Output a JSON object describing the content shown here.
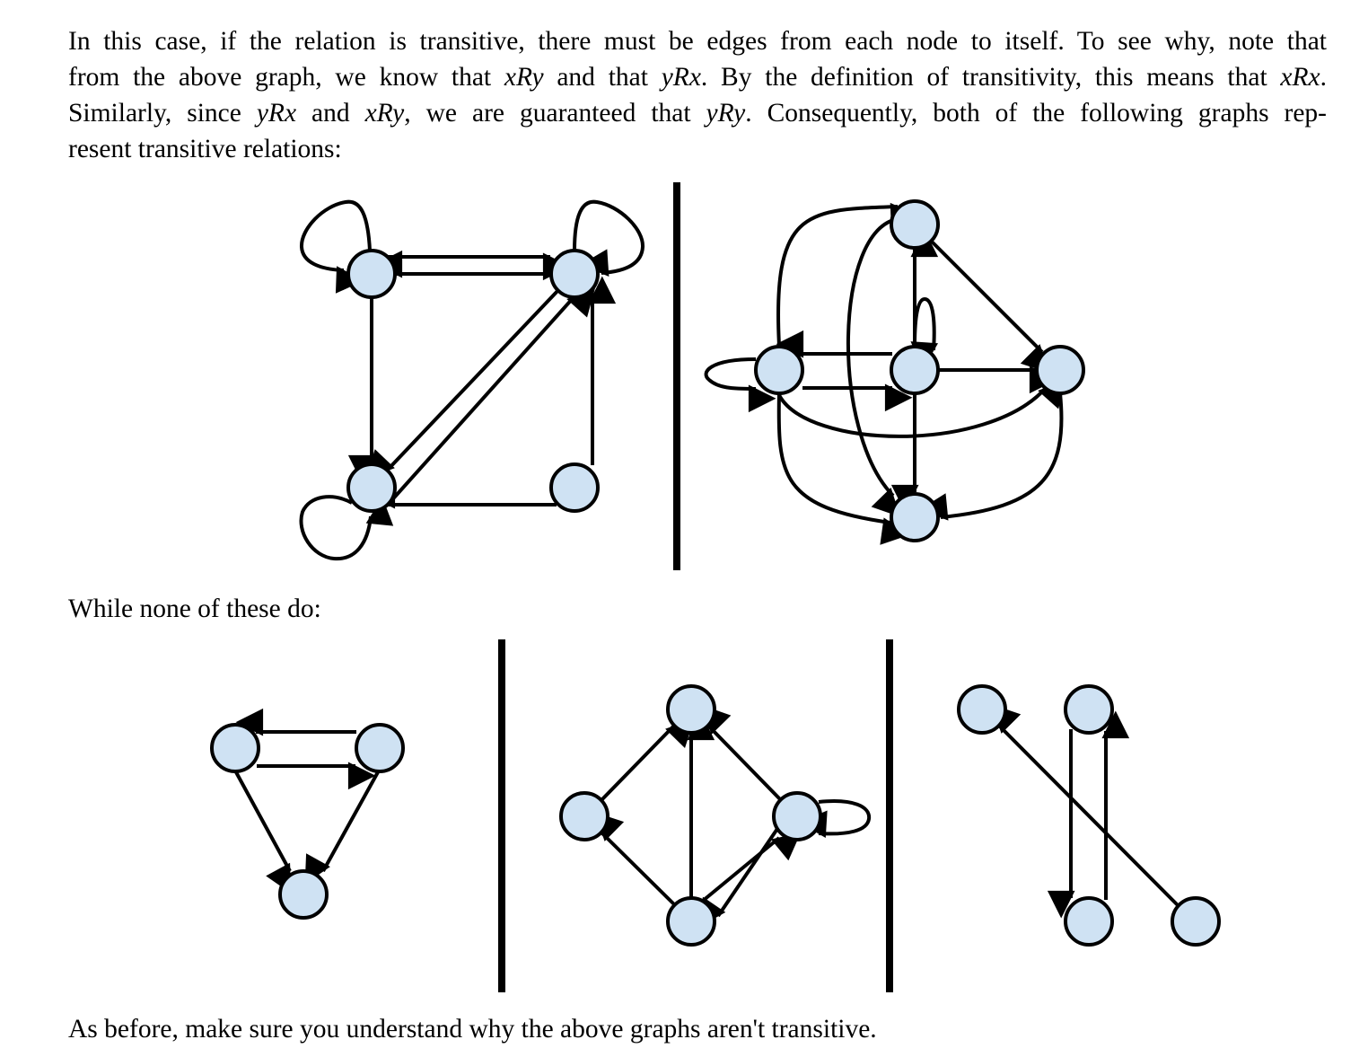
{
  "intro": {
    "line1": "In this case, if the relation is transitive, there must be edges from each node to itself.  To see why, note that",
    "line2_a": "from the above graph, we know that ",
    "line2_b": "xRy",
    "line2_c": " and that ",
    "line2_d": "yRx",
    "line2_e": ".  By the definition of transitivity, this means that ",
    "line2_f": "xRx",
    "line2_g": ".",
    "line3_a": "Similarly, since ",
    "line3_b": "yRx",
    "line3_c": " and ",
    "line3_d": "xRy",
    "line3_e": ", we are guaranteed that ",
    "line3_f": "yRy",
    "line3_g": ".  Consequently, both of the following graphs rep-",
    "line4": "resent transitive relations:"
  },
  "middle_text": "While none of these do:",
  "closing_text": "As before, make sure you understand why the above graphs aren't transitive.",
  "colors": {
    "node_fill": "#cfe2f3",
    "stroke": "#000000",
    "text": "#000000",
    "background": "#ffffff"
  }
}
